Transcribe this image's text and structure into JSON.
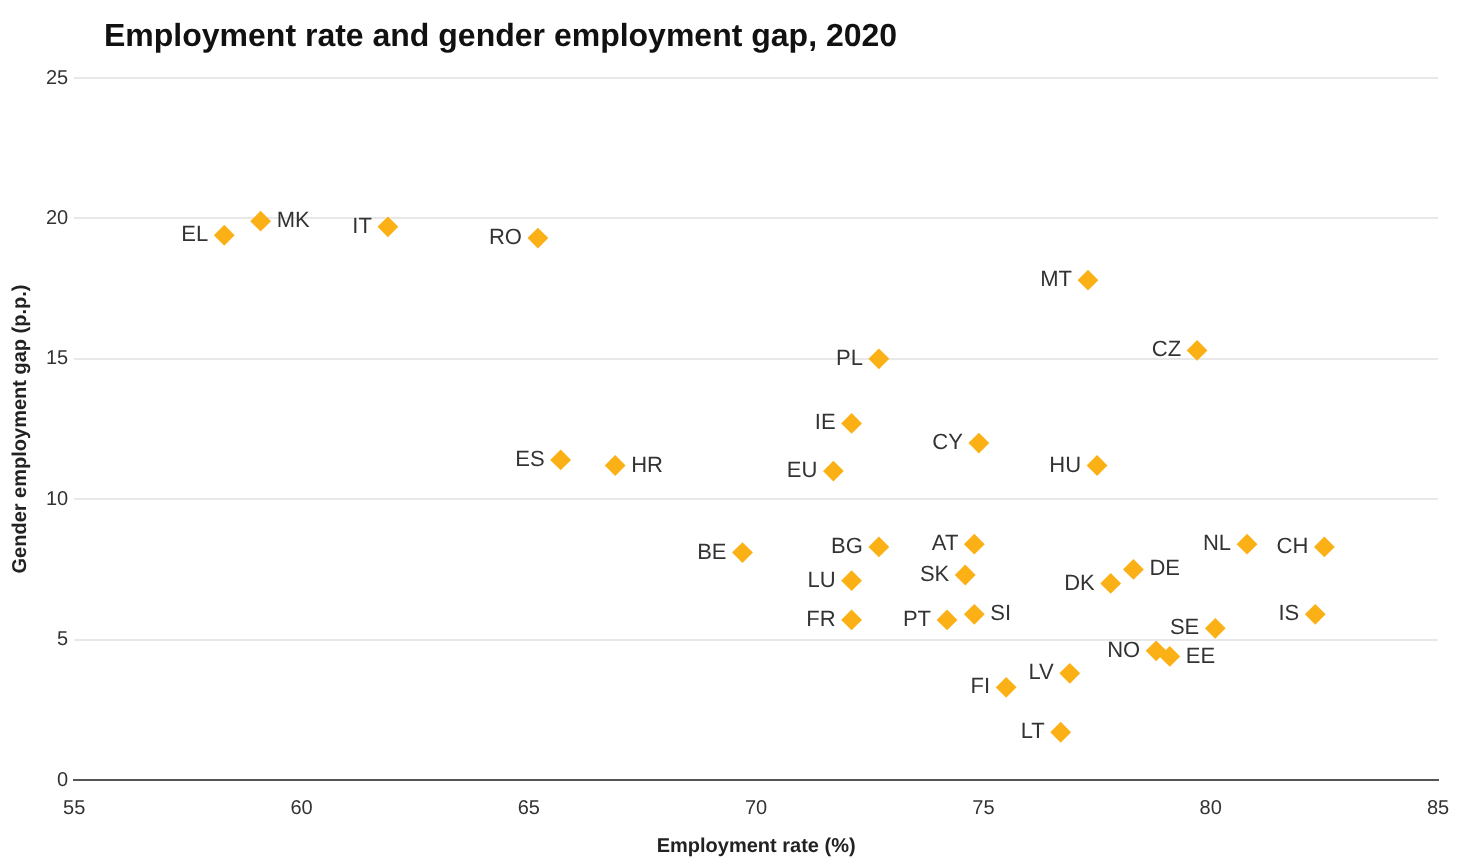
{
  "chart_data": {
    "type": "scatter",
    "title": "Employment rate and gender employment gap, 2020",
    "xlabel": "Employment rate (%)",
    "ylabel": "Gender employment gap (p.p.)",
    "xlim": [
      55,
      85
    ],
    "xticks": [
      55,
      60,
      65,
      70,
      75,
      80,
      85
    ],
    "ylim": [
      0,
      25
    ],
    "yticks": [
      0,
      5,
      10,
      15,
      20,
      25
    ],
    "grid": "y",
    "legend": false,
    "marker": "diamond",
    "series": [
      {
        "name": "EL",
        "color": "#fbb116",
        "x": [
          58.3
        ],
        "values": [
          19.4
        ]
      },
      {
        "name": "MK",
        "color": "#fbb116",
        "x": [
          59.1
        ],
        "values": [
          19.9
        ]
      },
      {
        "name": "IT",
        "color": "#fbb116",
        "x": [
          61.9
        ],
        "values": [
          19.7
        ]
      },
      {
        "name": "RO",
        "color": "#fbb116",
        "x": [
          65.2
        ],
        "values": [
          19.3
        ]
      },
      {
        "name": "ES",
        "color": "#fbb116",
        "x": [
          65.7
        ],
        "values": [
          11.4
        ]
      },
      {
        "name": "HR",
        "color": "#fbb116",
        "x": [
          66.9
        ],
        "values": [
          11.2
        ]
      },
      {
        "name": "BE",
        "color": "#fbb116",
        "x": [
          69.7
        ],
        "values": [
          8.1
        ]
      },
      {
        "name": "PL",
        "color": "#fbb116",
        "x": [
          72.7
        ],
        "values": [
          15.0
        ]
      },
      {
        "name": "IE",
        "color": "#fbb116",
        "x": [
          72.1
        ],
        "values": [
          12.7
        ]
      },
      {
        "name": "EU",
        "color": "#fbb116",
        "x": [
          71.7
        ],
        "values": [
          11.0
        ]
      },
      {
        "name": "CY",
        "color": "#fbb116",
        "x": [
          74.9
        ],
        "values": [
          12.0
        ]
      },
      {
        "name": "MT",
        "color": "#fbb116",
        "x": [
          77.3
        ],
        "values": [
          17.8
        ]
      },
      {
        "name": "CZ",
        "color": "#fbb116",
        "x": [
          79.7
        ],
        "values": [
          15.3
        ]
      },
      {
        "name": "HU",
        "color": "#fbb116",
        "x": [
          77.5
        ],
        "values": [
          11.2
        ]
      },
      {
        "name": "BG",
        "color": "#fbb116",
        "x": [
          72.7
        ],
        "values": [
          8.3
        ]
      },
      {
        "name": "AT",
        "color": "#fbb116",
        "x": [
          74.8
        ],
        "values": [
          8.4
        ]
      },
      {
        "name": "LU",
        "color": "#fbb116",
        "x": [
          72.1
        ],
        "values": [
          7.1
        ]
      },
      {
        "name": "SK",
        "color": "#fbb116",
        "x": [
          74.6
        ],
        "values": [
          7.3
        ]
      },
      {
        "name": "DE",
        "color": "#fbb116",
        "x": [
          78.3
        ],
        "values": [
          7.5
        ]
      },
      {
        "name": "DK",
        "color": "#fbb116",
        "x": [
          77.8
        ],
        "values": [
          7.0
        ]
      },
      {
        "name": "NL",
        "color": "#fbb116",
        "x": [
          80.8
        ],
        "values": [
          8.4
        ]
      },
      {
        "name": "CH",
        "color": "#fbb116",
        "x": [
          82.5
        ],
        "values": [
          8.3
        ]
      },
      {
        "name": "FR",
        "color": "#fbb116",
        "x": [
          72.1
        ],
        "values": [
          5.7
        ]
      },
      {
        "name": "PT",
        "color": "#fbb116",
        "x": [
          74.2
        ],
        "values": [
          5.7
        ]
      },
      {
        "name": "SI",
        "color": "#fbb116",
        "x": [
          74.8
        ],
        "values": [
          5.9
        ]
      },
      {
        "name": "SE",
        "color": "#fbb116",
        "x": [
          80.1
        ],
        "values": [
          5.4
        ]
      },
      {
        "name": "IS",
        "color": "#fbb116",
        "x": [
          82.3
        ],
        "values": [
          5.9
        ]
      },
      {
        "name": "NO",
        "color": "#fbb116",
        "x": [
          78.8
        ],
        "values": [
          4.6
        ]
      },
      {
        "name": "EE",
        "color": "#fbb116",
        "x": [
          79.1
        ],
        "values": [
          4.4
        ]
      },
      {
        "name": "LV",
        "color": "#fbb116",
        "x": [
          76.9
        ],
        "values": [
          3.8
        ]
      },
      {
        "name": "FI",
        "color": "#fbb116",
        "x": [
          75.5
        ],
        "values": [
          3.3
        ]
      },
      {
        "name": "LT",
        "color": "#fbb116",
        "x": [
          76.7
        ],
        "values": [
          1.7
        ]
      }
    ]
  }
}
